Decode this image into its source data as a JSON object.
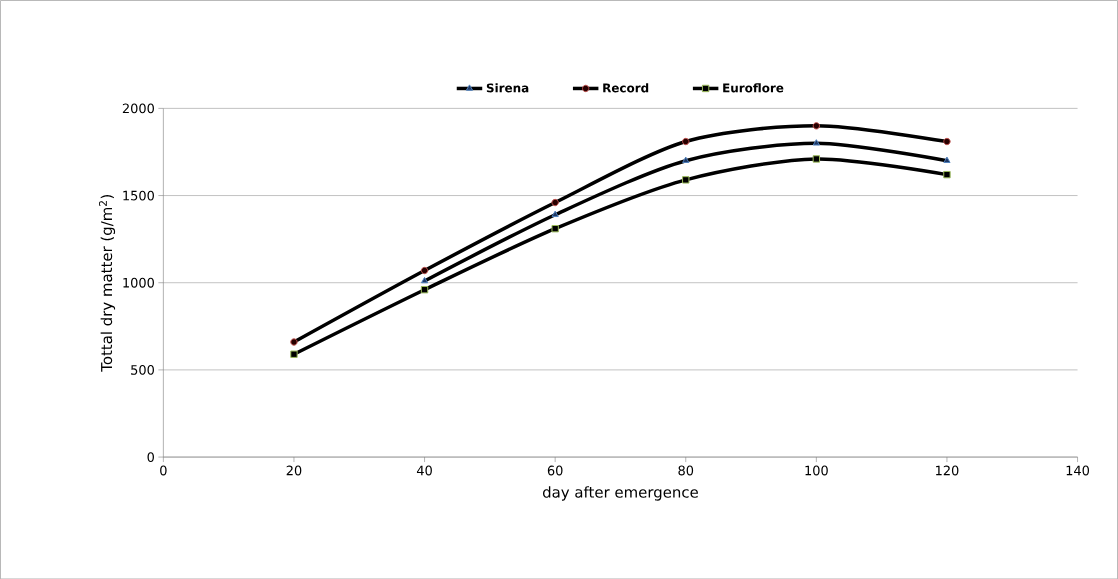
{
  "chart_data": {
    "type": "line",
    "xlabel": "day after emergence",
    "ylabel": "Tottal dry matter (g/m$^{2}$)",
    "x": [
      20,
      40,
      60,
      80,
      100,
      120
    ],
    "series": [
      {
        "name": "Sirena",
        "color": "#000000",
        "marker": "triangle",
        "values": [
          null,
          1010,
          1390,
          1700,
          1800,
          1700
        ]
      },
      {
        "name": "Record",
        "color": "#000000",
        "marker": "circle",
        "values": [
          660,
          1070,
          1460,
          1810,
          1900,
          1810
        ]
      },
      {
        "name": "Euroflore",
        "color": "#000000",
        "marker": "square",
        "values": [
          590,
          960,
          1310,
          1590,
          1710,
          1620
        ]
      }
    ],
    "xlim": [
      0,
      140
    ],
    "xticks": [
      0,
      20,
      40,
      60,
      80,
      100,
      120,
      140
    ],
    "ylim": [
      0,
      2000
    ],
    "yticks": [
      0,
      500,
      1000,
      1500,
      2000
    ],
    "grid": "y",
    "legend": "top",
    "line_style": "solid"
  }
}
